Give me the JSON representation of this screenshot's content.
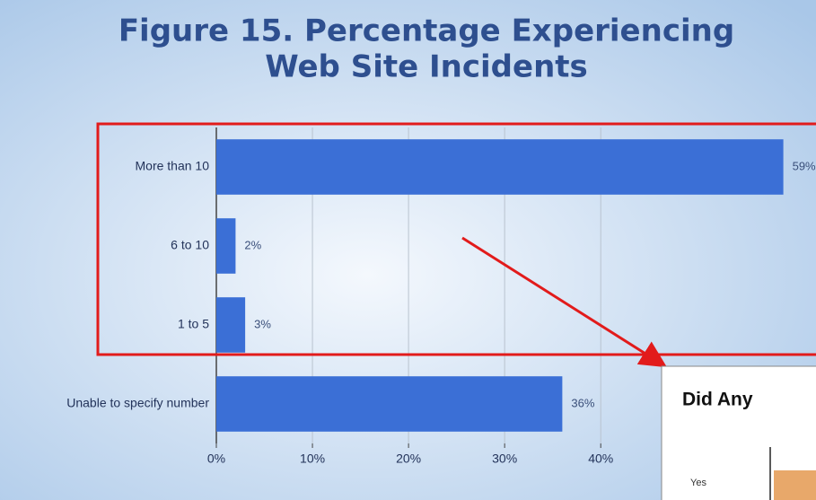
{
  "chart_data": {
    "type": "bar",
    "orientation": "horizontal",
    "title": [
      "Figure 15. Percentage Experiencing",
      "Web Site Incidents"
    ],
    "categories": [
      "More than 10",
      "6 to 10",
      "1 to 5",
      "Unable to specify number"
    ],
    "values": [
      59,
      2,
      3,
      36
    ],
    "value_labels": [
      "59%",
      "2%",
      "3%",
      "36%"
    ],
    "color": "#3b6fd6",
    "xlim": [
      0,
      62.4
    ],
    "xticks": [
      {
        "value": 0,
        "label": "0%"
      },
      {
        "value": 10,
        "label": "10%"
      },
      {
        "value": 20,
        "label": "20%"
      },
      {
        "value": 30,
        "label": "30%"
      },
      {
        "value": 40,
        "label": "40%"
      }
    ],
    "grid": true
  },
  "inset": {
    "title": "Did Any",
    "category": "Yes"
  }
}
